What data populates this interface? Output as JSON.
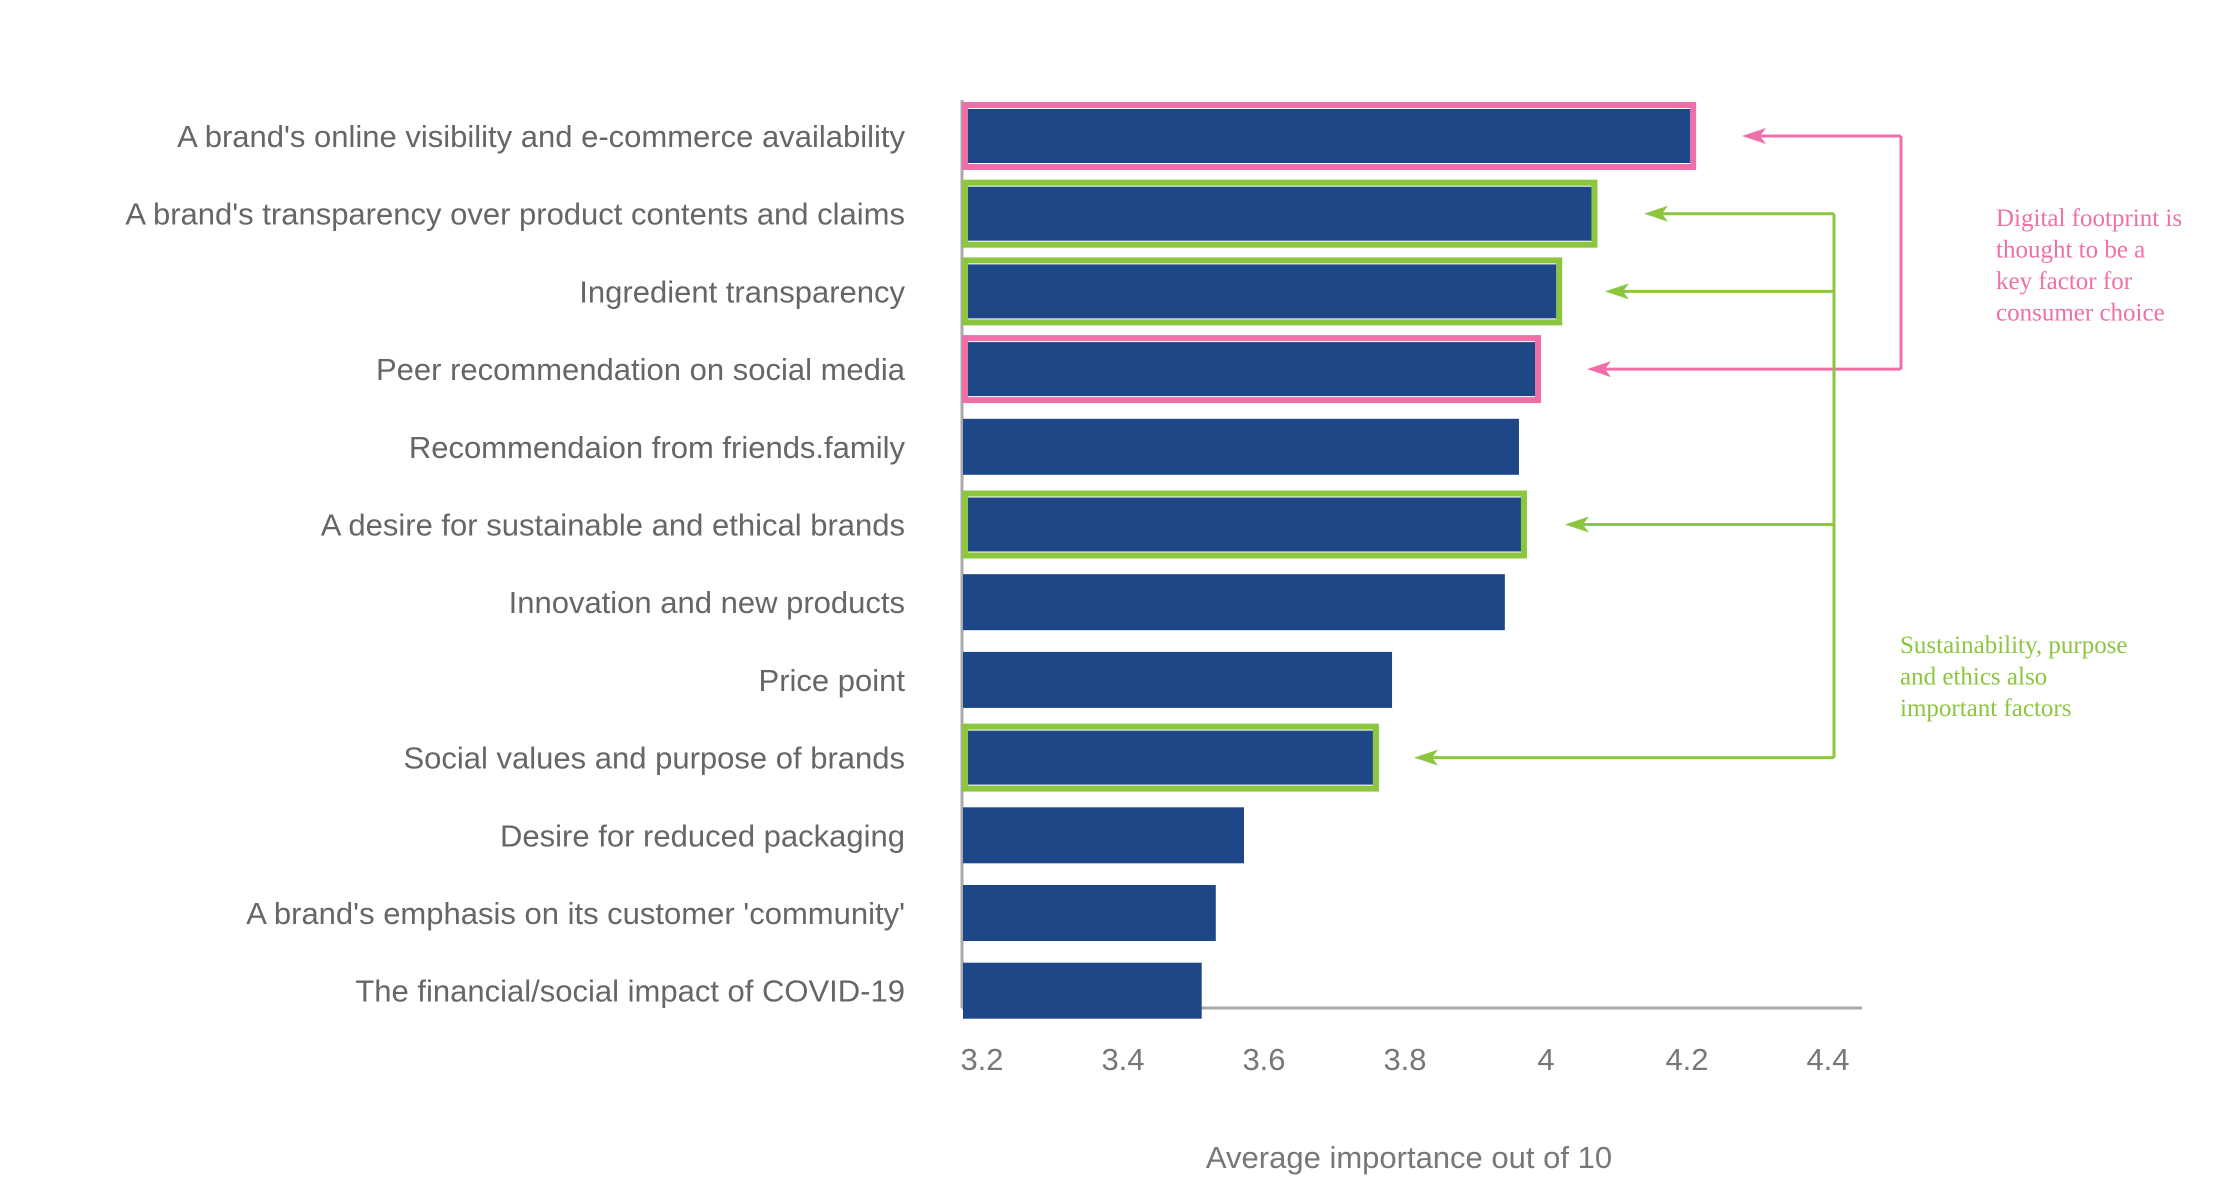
{
  "chart_data": {
    "type": "bar",
    "orientation": "horizontal",
    "categories": [
      "A brand's online visibility and e-commerce availability",
      "A brand's transparency over product contents and claims",
      "Ingredient transparency",
      "Peer recommendation on social media",
      "Recommendaion from friends.family",
      "A desire for sustainable and ethical brands",
      "Innovation and new products",
      "Price point",
      "Social values and purpose of brands",
      "Desire for reduced packaging",
      "A brand's emphasis on its customer 'community'",
      "The financial/social impact of COVID-19"
    ],
    "values": [
      4.23,
      4.09,
      4.04,
      4.01,
      3.99,
      3.99,
      3.97,
      3.81,
      3.78,
      3.6,
      3.56,
      3.54
    ],
    "highlight": [
      "pink",
      "green",
      "green",
      "pink",
      null,
      "green",
      null,
      null,
      "green",
      null,
      null,
      null
    ],
    "xlabel": "Average importance out of 10",
    "xlim": [
      3.2,
      4.4
    ],
    "xticks": [
      "3.2",
      "3.4",
      "3.6",
      "3.8",
      "4",
      "4.2",
      "4.4"
    ],
    "grid": false,
    "annotations": [
      {
        "color": "pink",
        "lines": [
          "Digital footprint is",
          "thought to be a",
          "key factor for",
          "consumer choice"
        ],
        "targets": [
          0,
          3
        ]
      },
      {
        "color": "green",
        "lines": [
          "Sustainability, purpose",
          "and ethics also",
          "important factors"
        ],
        "targets": [
          1,
          2,
          5,
          8
        ]
      }
    ],
    "colors": {
      "bar": "#1e4788",
      "pink": "#ef6fa8",
      "green": "#8cc63f",
      "axis": "#aaaaaa"
    }
  }
}
